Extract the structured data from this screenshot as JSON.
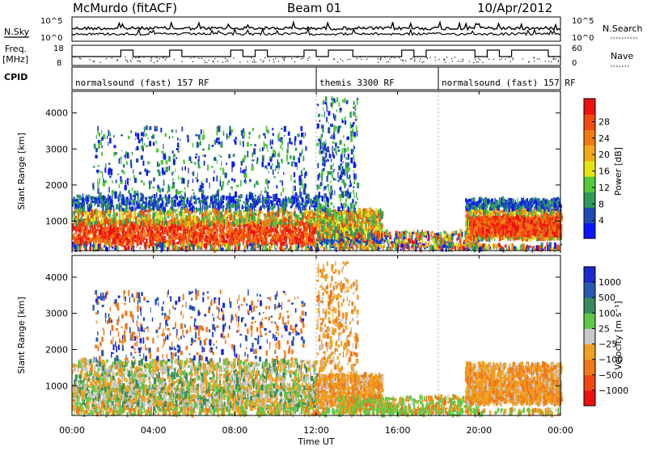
{
  "header": {
    "station": "McMurdo (fitACF)",
    "beam": "Beam 01",
    "date": "10/Apr/2012"
  },
  "summary_panels": {
    "nsky_label": "N.Sky",
    "nsearch_label": "N.Search",
    "nsky_ticks": [
      "10^5",
      "10^0"
    ],
    "nsearch_ticks": [
      "10^5",
      "10^0"
    ],
    "freq_label_line1": "Freq.",
    "freq_label_line2": "[MHz]",
    "freq_ticks": [
      "18",
      "8"
    ],
    "nave_label": "Nave",
    "nave_ticks": [
      "60",
      "0"
    ],
    "cpid_label": "CPID",
    "cpid_segments": [
      {
        "label": "normalsound (fast) 157 RF",
        "start_hour": 0,
        "end_hour": 12
      },
      {
        "label": "themis 3300 RF",
        "start_hour": 12,
        "end_hour": 18
      },
      {
        "label": "normalsound (fast) 157 RF",
        "start_hour": 18,
        "end_hour": 24
      }
    ]
  },
  "chart_data": [
    {
      "type": "heatmap",
      "title": "",
      "xlabel": "Time UT",
      "ylabel": "Slant Range [km]",
      "xlim_hours": [
        0,
        24
      ],
      "x_ticks": [
        "00:00",
        "04:00",
        "08:00",
        "12:00",
        "16:00",
        "20:00",
        "00:00"
      ],
      "ylim": [
        180,
        4600
      ],
      "y_ticks": [
        1000,
        2000,
        3000,
        4000
      ],
      "colorbar": {
        "label": "Power [dB]",
        "ticks": [
          "4",
          "8",
          "12",
          "16",
          "20",
          "24",
          "28"
        ],
        "colors": [
          "#0a14ff",
          "#1e4ab4",
          "#2e9a5a",
          "#55c83c",
          "#e8e414",
          "#f2a818",
          "#f07a12",
          "#f04a10",
          "#ee1010"
        ],
        "range": [
          0,
          30
        ]
      }
    },
    {
      "type": "heatmap",
      "title": "",
      "xlabel": "Time UT",
      "ylabel": "Slant Range [km]",
      "xlim_hours": [
        0,
        24
      ],
      "x_ticks": [
        "00:00",
        "04:00",
        "08:00",
        "12:00",
        "16:00",
        "20:00",
        "00:00"
      ],
      "ylim": [
        180,
        4600
      ],
      "y_ticks": [
        1000,
        2000,
        3000,
        4000
      ],
      "colorbar": {
        "label": "Velocity [m s⁻¹]",
        "ticks": [
          "1000",
          "500",
          "100",
          "25",
          "−25",
          "−100",
          "−500",
          "−1000"
        ],
        "colors": [
          "#1a2ad0",
          "#2a5ab0",
          "#3a8a60",
          "#60c848",
          "#c8c8c8",
          "#f0a020",
          "#f07818",
          "#f04814",
          "#ee1010"
        ]
      }
    }
  ],
  "colors": {
    "power": [
      "#0a14ff",
      "#1e4ab4",
      "#2e9a5a",
      "#55c83c",
      "#e8e414",
      "#f2a818",
      "#f07a12",
      "#f04a10",
      "#ee1010"
    ],
    "velocity_toward": [
      "#1a2ad0",
      "#2a5ab0",
      "#3a8a60",
      "#60c848"
    ],
    "velocity_zero": "#c8c8c8",
    "velocity_away": [
      "#f0a020",
      "#f07818",
      "#f04814",
      "#ee1010"
    ]
  }
}
